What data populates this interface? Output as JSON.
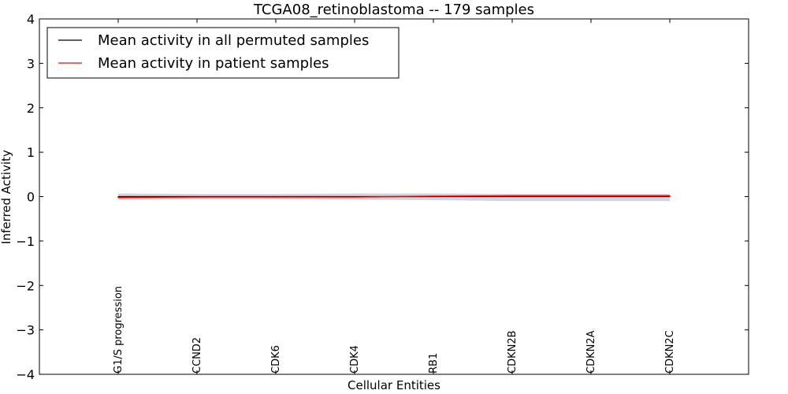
{
  "chart_data": {
    "type": "line",
    "title": "TCGA08_retinoblastoma -- 179 samples",
    "xlabel": "Cellular Entities",
    "ylabel": "Inferred Activity",
    "ylim": [
      -4,
      4
    ],
    "yticks": [
      -4,
      -3,
      -2,
      -1,
      0,
      1,
      2,
      3,
      4
    ],
    "ytick_labels": [
      "−4",
      "−3",
      "−2",
      "−1",
      "0",
      "1",
      "2",
      "3",
      "4"
    ],
    "categories": [
      "G1/S progression",
      "CCND2",
      "CDK6",
      "CDK4",
      "RB1",
      "CDKN2B",
      "CDKN2A",
      "CDKN2C"
    ],
    "x_range": [
      -1,
      8
    ],
    "legend_position": "top-left",
    "series": [
      {
        "name": "Mean activity in all permuted samples",
        "color": "#000000",
        "values": [
          0.0,
          0.0,
          0.0,
          0.0,
          0.0,
          0.0,
          0.0,
          0.0
        ],
        "band_lower": [
          -0.07,
          -0.06,
          -0.06,
          -0.07,
          -0.08,
          -0.1,
          -0.1,
          -0.1
        ],
        "band_upper": [
          0.07,
          0.06,
          0.06,
          0.07,
          0.07,
          0.06,
          0.06,
          0.06
        ],
        "band_color": "#b0b0c8"
      },
      {
        "name": "Mean activity in patient samples",
        "color": "#ff0000",
        "values": [
          -0.02,
          -0.01,
          -0.01,
          -0.01,
          0.01,
          0.02,
          0.02,
          0.02
        ],
        "band_lower": [
          -0.06,
          -0.04,
          -0.04,
          -0.04,
          -0.02,
          -0.01,
          -0.01,
          -0.01
        ],
        "band_upper": [
          0.02,
          0.02,
          0.02,
          0.02,
          0.04,
          0.05,
          0.05,
          0.05
        ],
        "band_color": "#f4a0a0"
      }
    ]
  }
}
